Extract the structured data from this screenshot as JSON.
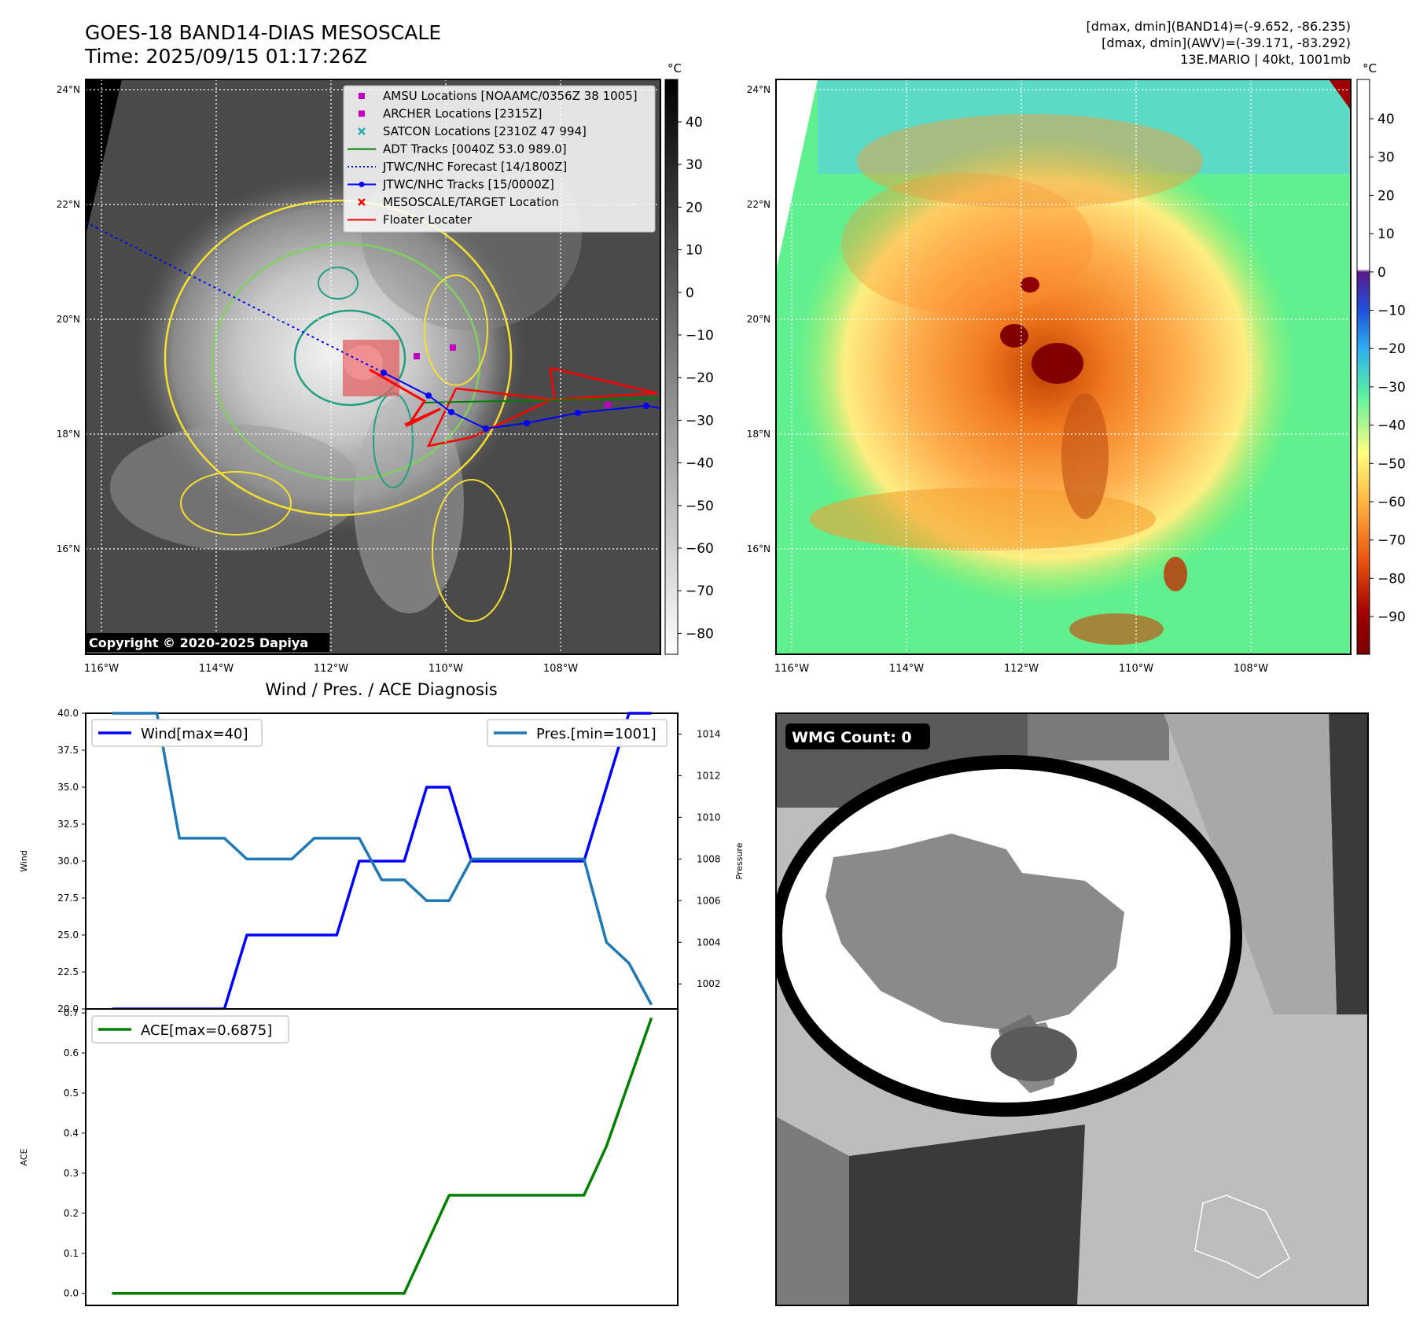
{
  "header": {
    "title": "GOES-18 BAND14-DIAS MESOSCALE",
    "time": "Time: 2025/09/15 01:17:26Z",
    "stats_band14": "[dmax, dmin](BAND14)=(-9.652, -86.235)",
    "stats_awv": "[dmax, dmin](AWV)=(-39.171, -83.292)",
    "storm": "13E.MARIO | 40kt, 1001mb"
  },
  "map": {
    "lat_labels": [
      "24°N",
      "22°N",
      "20°N",
      "18°N",
      "16°N"
    ],
    "lon_labels": [
      "116°W",
      "114°W",
      "112°W",
      "110°W",
      "108°W"
    ],
    "copyright": "Copyright © 2020-2025 Dapiya",
    "legend": [
      {
        "label": "AMSU Locations [NOAAMC/0356Z 38 1005]",
        "color": "#c000c0",
        "marker": "square"
      },
      {
        "label": "ARCHER Locations [2315Z]",
        "color": "#c000c0",
        "marker": "square"
      },
      {
        "label": "SATCON Locations [2310Z 47 994]",
        "color": "#20b0b0",
        "marker": "x"
      },
      {
        "label": "ADT Tracks [0040Z 53.0 989.0]",
        "color": "#008000",
        "marker": "line"
      },
      {
        "label": "JTWC/NHC Forecast [14/1800Z]",
        "color": "#0000ff",
        "marker": "dotted"
      },
      {
        "label": "JTWC/NHC Tracks [15/0000Z]",
        "color": "#0000ff",
        "marker": "line-dot"
      },
      {
        "label": "MESOSCALE/TARGET Location",
        "color": "#ff0000",
        "marker": "x"
      },
      {
        "label": "Floater Locater",
        "color": "#ff0000",
        "marker": "line"
      }
    ],
    "colorbar_unit": "°C",
    "colorbar1_ticks": [
      "40",
      "30",
      "20",
      "10",
      "0",
      "−10",
      "−20",
      "−30",
      "−40",
      "−50",
      "−60",
      "−70",
      "−80"
    ],
    "colorbar2_ticks": [
      "40",
      "30",
      "20",
      "10",
      "0",
      "−10",
      "−20",
      "−30",
      "−40",
      "−50",
      "−60",
      "−70",
      "−80",
      "−90"
    ]
  },
  "wmg_label": "WMG Count: 0",
  "chart_data": [
    {
      "type": "line",
      "title": "Wind / Pres. / ACE Diagnosis",
      "x": [
        0,
        1,
        2,
        3,
        4,
        5,
        6,
        7,
        8,
        9,
        10,
        11,
        12,
        13,
        14,
        15,
        16,
        17,
        18,
        19,
        20,
        21,
        22,
        23,
        24
      ],
      "ylabel": "Wind",
      "y2label": "Pressure",
      "ylim": [
        20.0,
        40.0
      ],
      "y2lim": [
        1000.8,
        1015.0
      ],
      "yticks": [
        "20.0",
        "22.5",
        "25.0",
        "27.5",
        "30.0",
        "32.5",
        "35.0",
        "37.5",
        "40.0"
      ],
      "y2ticks": [
        "1002",
        "1004",
        "1006",
        "1008",
        "1010",
        "1012",
        "1014"
      ],
      "series": [
        {
          "name": "Wind[max=40]",
          "axis": "left",
          "color": "#0000ff",
          "values": [
            20,
            20,
            20,
            20,
            20,
            20,
            25,
            25,
            25,
            25,
            25,
            30,
            30,
            30,
            35,
            35,
            30,
            30,
            30,
            30,
            30,
            30,
            35,
            40,
            40
          ]
        },
        {
          "name": "Pres.[min=1001]",
          "axis": "right",
          "color": "#1f77b4",
          "values": [
            1015,
            1015,
            1015,
            1009,
            1009,
            1009,
            1008,
            1008,
            1008,
            1009,
            1009,
            1009,
            1007,
            1007,
            1006,
            1006,
            1008,
            1008,
            1008,
            1008,
            1008,
            1008,
            1004,
            1003,
            1001
          ]
        }
      ]
    },
    {
      "type": "line",
      "x": [
        0,
        1,
        2,
        3,
        4,
        5,
        6,
        7,
        8,
        9,
        10,
        11,
        12,
        13,
        14,
        15,
        16,
        17,
        18,
        19,
        20,
        21,
        22,
        23,
        24
      ],
      "ylabel": "ACE",
      "ylim": [
        -0.03,
        0.71
      ],
      "yticks": [
        "0.0",
        "0.1",
        "0.2",
        "0.3",
        "0.4",
        "0.5",
        "0.6",
        "0.7"
      ],
      "series": [
        {
          "name": "ACE[max=0.6875]",
          "color": "#008000",
          "values": [
            0,
            0,
            0,
            0,
            0,
            0,
            0,
            0,
            0,
            0,
            0,
            0,
            0,
            0,
            0.1225,
            0.245,
            0.245,
            0.245,
            0.245,
            0.245,
            0.245,
            0.245,
            0.3675,
            0.5275,
            0.6875
          ]
        }
      ]
    }
  ]
}
